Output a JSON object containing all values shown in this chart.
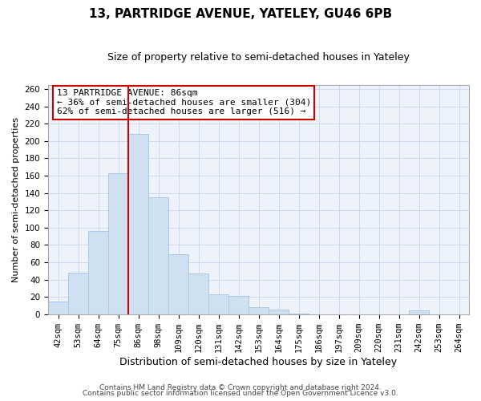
{
  "title": "13, PARTRIDGE AVENUE, YATELEY, GU46 6PB",
  "subtitle": "Size of property relative to semi-detached houses in Yateley",
  "xlabel": "Distribution of semi-detached houses by size in Yateley",
  "ylabel": "Number of semi-detached properties",
  "bins": [
    "42sqm",
    "53sqm",
    "64sqm",
    "75sqm",
    "86sqm",
    "98sqm",
    "109sqm",
    "120sqm",
    "131sqm",
    "142sqm",
    "153sqm",
    "164sqm",
    "175sqm",
    "186sqm",
    "197sqm",
    "209sqm",
    "220sqm",
    "231sqm",
    "242sqm",
    "253sqm",
    "264sqm"
  ],
  "values": [
    15,
    48,
    96,
    163,
    208,
    135,
    69,
    47,
    23,
    21,
    8,
    5,
    1,
    0,
    0,
    0,
    0,
    0,
    4,
    0,
    0
  ],
  "bar_color": "#cfe0f0",
  "bar_edge_color": "#aac8e8",
  "highlight_line_color": "#cc0000",
  "annotation_title": "13 PARTRIDGE AVENUE: 86sqm",
  "annotation_line1": "← 36% of semi-detached houses are smaller (304)",
  "annotation_line2": "62% of semi-detached houses are larger (516) →",
  "annotation_box_color": "#ffffff",
  "annotation_box_edge_color": "#cc0000",
  "ylim": [
    0,
    265
  ],
  "yticks": [
    0,
    20,
    40,
    60,
    80,
    100,
    120,
    140,
    160,
    180,
    200,
    220,
    240,
    260
  ],
  "footnote1": "Contains HM Land Registry data © Crown copyright and database right 2024.",
  "footnote2": "Contains public sector information licensed under the Open Government Licence v3.0.",
  "title_fontsize": 11,
  "subtitle_fontsize": 9,
  "xlabel_fontsize": 9,
  "ylabel_fontsize": 8,
  "tick_fontsize": 7.5,
  "annotation_fontsize": 8,
  "footnote_fontsize": 6.5,
  "bg_color": "#ffffff",
  "plot_bg_color": "#eef2fa",
  "grid_color": "#d0d8ee"
}
